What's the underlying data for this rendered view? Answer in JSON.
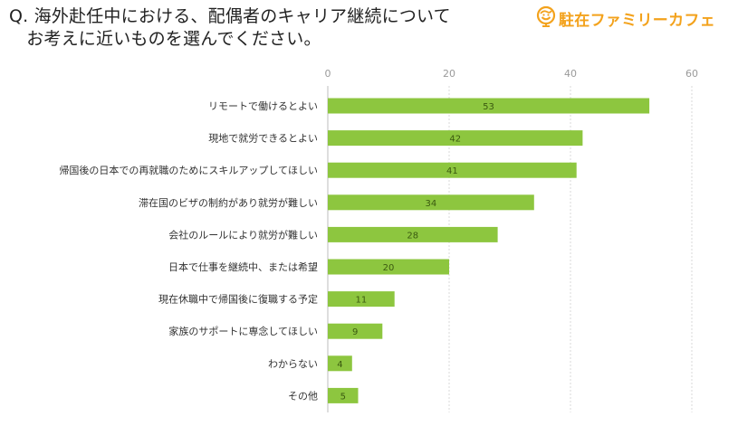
{
  "header": {
    "question": "Q. 海外赴任中における、配偶者のキャリア継続について\n　お考えに近いものを選んでください。",
    "brand_name": "駐在ファミリーカフェ",
    "brand_icon": "globe-smile-icon",
    "brand_color": "#f3a21c"
  },
  "chart_data": {
    "type": "bar",
    "orientation": "horizontal",
    "title": "",
    "xlabel": "",
    "ylabel": "",
    "xlim": [
      0,
      60
    ],
    "ticks": [
      0,
      20,
      40,
      60
    ],
    "tick_labels": [
      "0",
      "20",
      "40",
      "60"
    ],
    "grid": true,
    "bar_color": "#8dc63f",
    "categories": [
      "リモートで働けるとよい",
      "現地で就労できるとよい",
      "帰国後の日本での再就職のためにスキルアップしてほしい",
      "滞在国のビザの制約があり就労が難しい",
      "会社のルールにより就労が難しい",
      "日本で仕事を継続中、または希望",
      "現在休職中で帰国後に復職する予定",
      "家族のサポートに専念してほしい",
      "わからない",
      "その他"
    ],
    "values": [
      53,
      42,
      41,
      34,
      28,
      20,
      11,
      9,
      4,
      5
    ],
    "data_labels": [
      "53",
      "42",
      "41",
      "34",
      "28",
      "20",
      "11",
      "9",
      "4",
      "5"
    ]
  }
}
